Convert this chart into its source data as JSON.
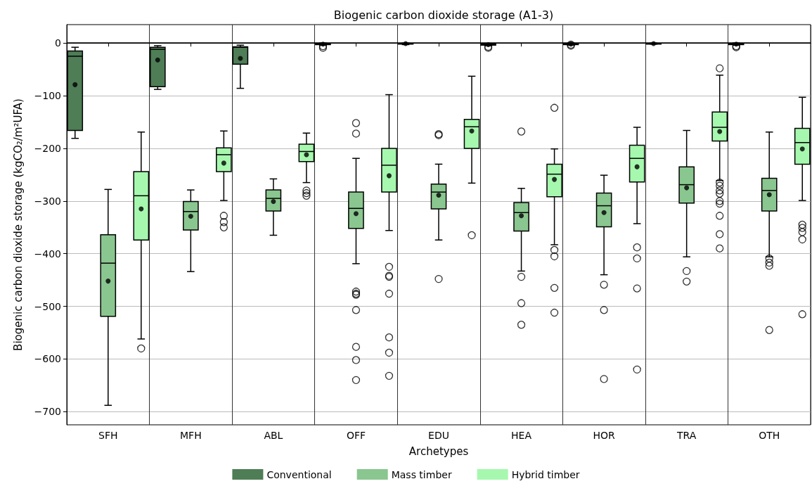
{
  "chart_data": {
    "type": "box",
    "title": "Biogenic carbon dioxide storage (A1-3)",
    "xlabel": "Archetypes",
    "ylabel": "Biogenic carbon dioxide storage (kgCO₂/m²UFA)",
    "categories": [
      "SFH",
      "MFH",
      "ABL",
      "OFF",
      "EDU",
      "HEA",
      "HOR",
      "TRA",
      "OTH"
    ],
    "ylim": [
      -725,
      35
    ],
    "yticks": [
      0,
      -100,
      -200,
      -300,
      -400,
      -500,
      -600,
      -700
    ],
    "grid": true,
    "legend": "bottom",
    "ref_lines": [
      {
        "axis": "y",
        "value": 0,
        "color": "#000000"
      }
    ],
    "series": [
      {
        "name": "Conventional",
        "color": "#4e7d56",
        "boxes": [
          {
            "low": -181,
            "q1": -166,
            "median": -25,
            "q3": -15,
            "high": -8,
            "mean": -79
          },
          {
            "low": -88,
            "q1": -83,
            "median": -12,
            "q3": -8,
            "high": -5,
            "mean": -32
          },
          {
            "low": -86,
            "q1": -40,
            "median": -8,
            "q3": -7,
            "high": -4,
            "mean": -29
          },
          {
            "low": -4,
            "q1": -3,
            "median": -2,
            "q3": -1,
            "high": 0,
            "mean": -2,
            "outliers": [
              -6,
              -9
            ]
          },
          {
            "low": -3,
            "q1": -2,
            "median": -1,
            "q3": -1,
            "high": 0,
            "mean": -1
          },
          {
            "low": -5,
            "q1": -4,
            "median": -3,
            "q3": -2,
            "high": -1,
            "mean": -3,
            "outliers": [
              -7,
              -9
            ]
          },
          {
            "low": -4,
            "q1": -3,
            "median": -2,
            "q3": -1,
            "high": 0,
            "mean": -2,
            "outliers": [
              -3,
              -5
            ]
          },
          {
            "low": -2,
            "q1": -2,
            "median": -1,
            "q3": -1,
            "high": 0,
            "mean": -1
          },
          {
            "low": -4,
            "q1": -3,
            "median": -2,
            "q3": -1,
            "high": 0,
            "mean": -2,
            "outliers": [
              -6,
              -8
            ]
          }
        ]
      },
      {
        "name": "Mass timber",
        "color": "#8ac68f",
        "boxes": [
          {
            "low": -688,
            "q1": -519,
            "median": -418,
            "q3": -364,
            "high": -278,
            "mean": -452
          },
          {
            "low": -434,
            "q1": -355,
            "median": -320,
            "q3": -301,
            "high": -279,
            "mean": -329
          },
          {
            "low": -365,
            "q1": -319,
            "median": -295,
            "q3": -279,
            "high": -258,
            "mean": -301
          },
          {
            "low": -419,
            "q1": -352,
            "median": -314,
            "q3": -283,
            "high": -219,
            "mean": -324,
            "outliers": [
              -152,
              -172,
              -472,
              -476,
              -478,
              -507,
              -577,
              -602,
              -640
            ]
          },
          {
            "low": -374,
            "q1": -315,
            "median": -283,
            "q3": -268,
            "high": -230,
            "mean": -289,
            "outliers": [
              -173,
              -175,
              -448
            ]
          },
          {
            "low": -433,
            "q1": -357,
            "median": -322,
            "q3": -303,
            "high": -276,
            "mean": -328,
            "outliers": [
              -168,
              -444,
              -494,
              -535
            ]
          },
          {
            "low": -440,
            "q1": -349,
            "median": -309,
            "q3": -285,
            "high": -251,
            "mean": -322,
            "outliers": [
              -459,
              -507,
              -638
            ]
          },
          {
            "low": -406,
            "q1": -304,
            "median": -269,
            "q3": -235,
            "high": -166,
            "mean": -275,
            "outliers": [
              -433,
              -453
            ]
          },
          {
            "low": -406,
            "q1": -319,
            "median": -280,
            "q3": -257,
            "high": -169,
            "mean": -288,
            "outliers": [
              -409,
              -417,
              -423,
              -545
            ]
          }
        ]
      },
      {
        "name": "Hybrid timber",
        "color": "#a6f8ae",
        "boxes": [
          {
            "low": -562,
            "q1": -374,
            "median": -290,
            "q3": -244,
            "high": -169,
            "mean": -315,
            "outliers": [
              -580
            ]
          },
          {
            "low": -299,
            "q1": -244,
            "median": -212,
            "q3": -199,
            "high": -167,
            "mean": -228,
            "outliers": [
              -328,
              -340,
              -350
            ]
          },
          {
            "low": -265,
            "q1": -225,
            "median": -206,
            "q3": -192,
            "high": -171,
            "mean": -212,
            "outliers": [
              -280,
              -285,
              -290
            ]
          },
          {
            "low": -356,
            "q1": -283,
            "median": -232,
            "q3": -200,
            "high": -98,
            "mean": -252,
            "outliers": [
              -425,
              -442,
              -444,
              -476,
              -559,
              -588,
              -632
            ]
          },
          {
            "low": -266,
            "q1": -200,
            "median": -159,
            "q3": -145,
            "high": -63,
            "mean": -167,
            "outliers": [
              -365
            ]
          },
          {
            "low": -383,
            "q1": -292,
            "median": -249,
            "q3": -230,
            "high": -201,
            "mean": -259,
            "outliers": [
              -123,
              -393,
              -405,
              -465,
              -512
            ]
          },
          {
            "low": -343,
            "q1": -264,
            "median": -219,
            "q3": -194,
            "high": -160,
            "mean": -235,
            "outliers": [
              -388,
              -409,
              -466,
              -620
            ]
          },
          {
            "low": -261,
            "q1": -186,
            "median": -160,
            "q3": -131,
            "high": -61,
            "mean": -168,
            "outliers": [
              -48,
              -265,
              -271,
              -280,
              -286,
              -300,
              -305,
              -328,
              -363,
              -390
            ]
          },
          {
            "low": -299,
            "q1": -230,
            "median": -189,
            "q3": -162,
            "high": -103,
            "mean": -201,
            "outliers": [
              -345,
              -351,
              -359,
              -373,
              -515
            ]
          }
        ]
      }
    ]
  }
}
